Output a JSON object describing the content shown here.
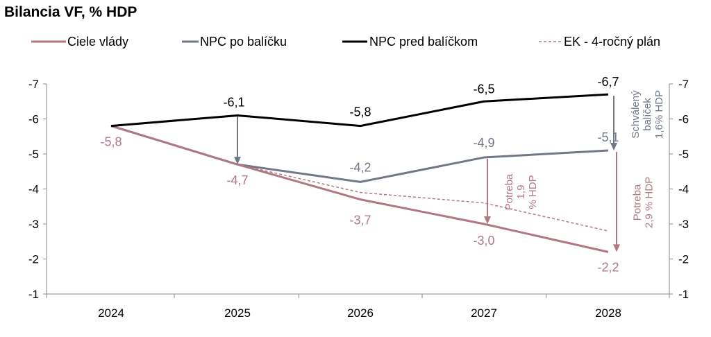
{
  "chart_data": {
    "type": "line",
    "title": "Bilancia VF, % HDP",
    "xlabel": "",
    "ylabel": "",
    "categories": [
      "2024",
      "2025",
      "2026",
      "2027",
      "2028"
    ],
    "ylim": [
      -7,
      -1
    ],
    "yticks": [
      -7,
      -6,
      -5,
      -4,
      -3,
      -2,
      -1
    ],
    "y_axis_inverted": true,
    "secondary_y_axis": true,
    "grid": false,
    "legend_position": "top",
    "series": [
      {
        "name": "Ciele vlády",
        "color": "#b07882",
        "style": "solid",
        "values": [
          -5.8,
          -4.7,
          -3.7,
          -3.0,
          -2.2
        ],
        "labels": [
          "-5,8",
          "-4,7",
          "-3,7",
          "-3,0",
          "-2,2"
        ]
      },
      {
        "name": "NPC po balíčku",
        "color": "#707888",
        "style": "solid",
        "values": [
          -5.8,
          -4.7,
          -4.2,
          -4.9,
          -5.1
        ],
        "labels": [
          "",
          "",
          "-4,2",
          "-4,9",
          "-5,1"
        ]
      },
      {
        "name": "NPC pred balíčkom",
        "color": "#000000",
        "style": "solid",
        "values": [
          -5.8,
          -6.1,
          -5.8,
          -6.5,
          -6.7
        ],
        "labels": [
          "",
          "-6,1",
          "-5,8",
          "-6,5",
          "-6,7"
        ]
      },
      {
        "name": "EK - 4-ročný plán",
        "color": "#b07882",
        "style": "dashed",
        "values": [
          -5.8,
          -4.7,
          -3.9,
          -3.6,
          -2.8
        ],
        "labels": [
          "",
          "",
          "",
          "",
          ""
        ]
      }
    ],
    "annotations": [
      {
        "text": "",
        "from_series": 2,
        "to_series": 1,
        "category": 1,
        "color": "#707888"
      },
      {
        "text": "Schválený balíček 1,6% HDP",
        "from_series": 2,
        "to_series": 1,
        "category": 4,
        "color": "#707888"
      },
      {
        "text": "Potreba 1,9 % HDP",
        "from_series": 1,
        "to_series": 0,
        "category": 3,
        "color": "#b07882"
      },
      {
        "text": "Potreba 2,9 % HDP",
        "from_series": 1,
        "to_series": 0,
        "category": 4,
        "color": "#b07882"
      }
    ]
  }
}
